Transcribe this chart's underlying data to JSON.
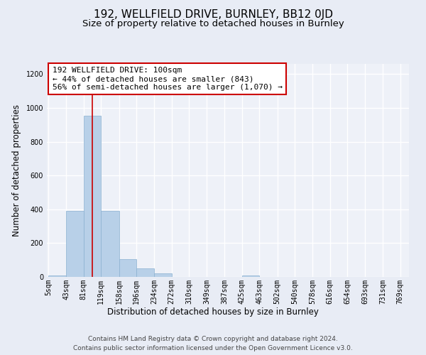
{
  "title": "192, WELLFIELD DRIVE, BURNLEY, BB12 0JD",
  "subtitle": "Size of property relative to detached houses in Burnley",
  "xlabel": "Distribution of detached houses by size in Burnley",
  "ylabel": "Number of detached properties",
  "bar_edges": [
    5,
    43,
    81,
    119,
    158,
    196,
    234,
    272,
    310,
    349,
    387,
    425,
    463,
    502,
    540,
    578,
    616,
    654,
    693,
    731,
    769
  ],
  "bar_heights": [
    10,
    390,
    955,
    390,
    105,
    50,
    20,
    0,
    0,
    0,
    0,
    10,
    0,
    0,
    0,
    0,
    0,
    0,
    0,
    0
  ],
  "bar_color": "#b8d0e8",
  "bar_edgecolor": "#8ab0d0",
  "property_line_x": 100,
  "property_line_color": "#cc0000",
  "annotation_title": "192 WELLFIELD DRIVE: 100sqm",
  "annotation_line1": "← 44% of detached houses are smaller (843)",
  "annotation_line2": "56% of semi-detached houses are larger (1,070) →",
  "annotation_box_edgecolor": "#cc0000",
  "annotation_box_facecolor": "#ffffff",
  "ylim": [
    0,
    1260
  ],
  "yticks": [
    0,
    200,
    400,
    600,
    800,
    1000,
    1200
  ],
  "footer_line1": "Contains HM Land Registry data © Crown copyright and database right 2024.",
  "footer_line2": "Contains public sector information licensed under the Open Government Licence v3.0.",
  "bg_color": "#e8ecf5",
  "plot_bg_color": "#eef1f8",
  "grid_color": "#ffffff",
  "title_fontsize": 11,
  "subtitle_fontsize": 9.5,
  "axis_label_fontsize": 8.5,
  "tick_fontsize": 7,
  "footer_fontsize": 6.5,
  "annotation_fontsize": 8
}
